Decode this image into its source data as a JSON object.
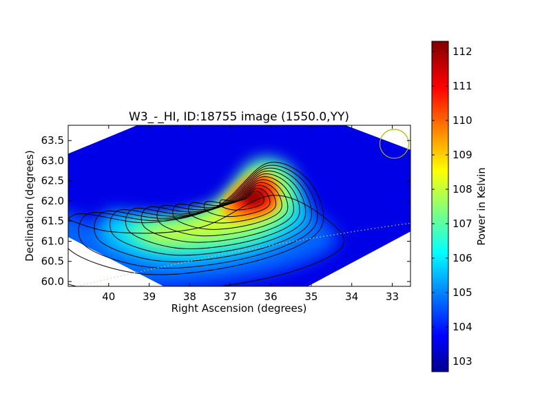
{
  "chart_data": {
    "type": "heatmap",
    "title": "W3_-_HI, ID:18755 image (1550.0,YY)",
    "xlabel": "Right Ascension (degrees)",
    "ylabel": "Declination (degrees)",
    "xlim": [
      41.0,
      32.55
    ],
    "ylim": [
      59.88,
      63.88
    ],
    "x_ticks": [
      40,
      39,
      38,
      37,
      36,
      35,
      34,
      33
    ],
    "x_tick_labels": [
      "40",
      "39",
      "38",
      "37",
      "36",
      "35",
      "34",
      "33"
    ],
    "y_ticks": [
      60.0,
      60.5,
      61.0,
      61.5,
      62.0,
      62.5,
      63.0,
      63.5
    ],
    "y_tick_labels": [
      "60.0",
      "60.5",
      "61.0",
      "61.5",
      "62.0",
      "62.5",
      "63.0",
      "63.5"
    ],
    "peak": {
      "x": 36.5,
      "y": 62.05,
      "value": 112.3
    },
    "contour_count": 11,
    "colorbar": {
      "label": "Power in Kelvin",
      "min": 102.7,
      "max": 112.3,
      "ticks": [
        103,
        104,
        105,
        106,
        107,
        108,
        109,
        110,
        111,
        112
      ],
      "tick_labels": [
        "103",
        "104",
        "105",
        "106",
        "107",
        "108",
        "109",
        "110",
        "111",
        "112"
      ]
    },
    "beam_circle": {
      "x": 32.95,
      "y": 63.42
    },
    "colormap": "jet",
    "colors": {
      "beam": "#b5b500",
      "contour": "#000000",
      "dotted_line": "#d0d0a0"
    }
  }
}
